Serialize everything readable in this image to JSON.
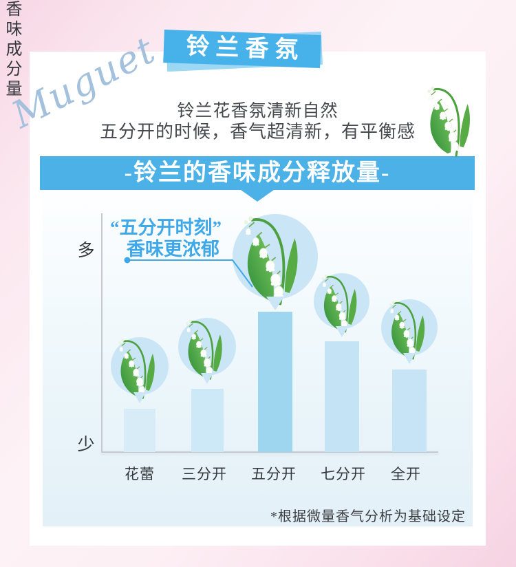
{
  "header": {
    "script_word": "Muguet",
    "badge_label": "铃兰香氛",
    "intro_line1": "铃兰花香氛清新自然",
    "intro_line2": "五分开的时候，香气超清新，有平衡感"
  },
  "banner": {
    "title": "-铃兰的香味成分释放量-"
  },
  "annotation": {
    "line1": "“五分开时刻”",
    "line2": "香味更浓郁"
  },
  "axis": {
    "top": "多",
    "label": "香味成分量",
    "bottom": "少"
  },
  "footnote": "*根据微量香气分析为基础设定",
  "colors": {
    "accent_blue": "#47b2e9",
    "banner_blue": "#4bb1e7",
    "annotation_blue": "#3fa8e8",
    "bubble_blue": "#c9e5f6",
    "script_blue": "#a3c0dc",
    "panel_blue": "#e3f0f7",
    "pink_background": "#f7d7e5"
  },
  "chart_data": {
    "type": "bar",
    "title": "-铃兰的香味成分释放量-",
    "categories": [
      "花蕾",
      "三分开",
      "五分开",
      "七分开",
      "全开"
    ],
    "values": [
      31,
      45,
      100,
      79,
      59
    ],
    "ylabel": "香味成分量",
    "y_axis_top_label": "多",
    "y_axis_bottom_label": "少",
    "ylim": [
      0,
      100
    ],
    "grid": false,
    "legend": "none",
    "highlight_category": "五分开",
    "annotation_text": "“五分开时刻”香味更浓郁",
    "footnote": "*根据微量香气分析为基础设定",
    "bar_colors": [
      "#d8ecf8",
      "#cde8f6",
      "#9fd6ef",
      "#c4e3f4",
      "#c6e4f5"
    ]
  }
}
